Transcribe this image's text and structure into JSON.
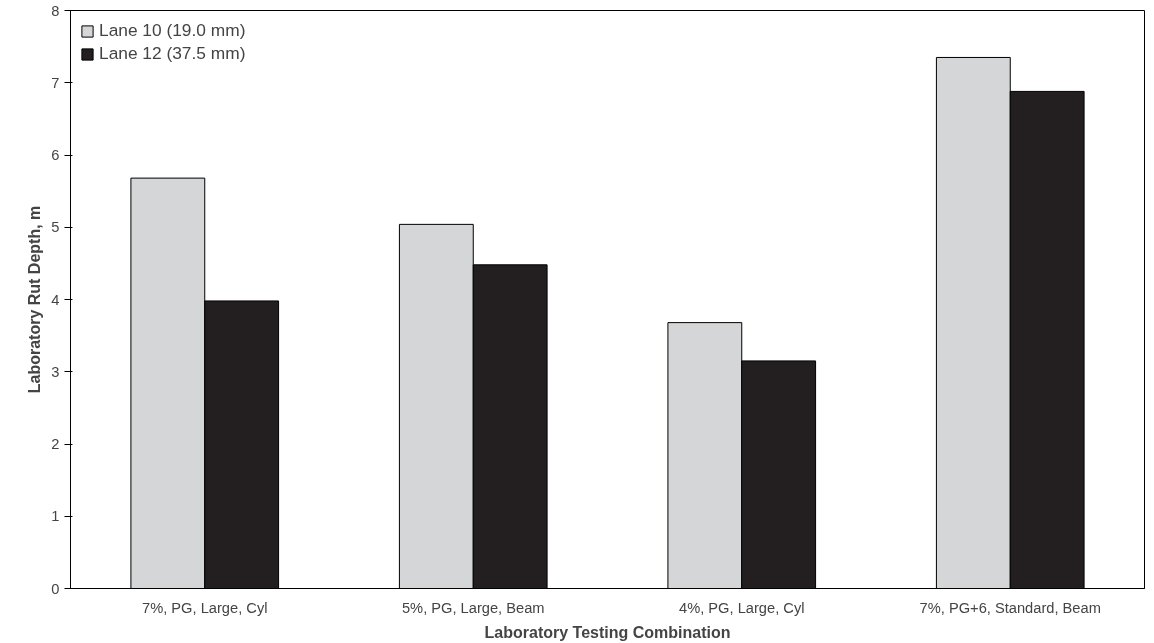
{
  "chart_data": {
    "type": "bar",
    "xlabel": "Laboratory Testing Combination",
    "ylabel": "Laboratory Rut Depth, m",
    "categories": [
      "7%, PG, Large, Cyl",
      "5%, PG, Large, Beam",
      "4%, PG, Large, Cyl",
      "7%, PG+6, Standard, Beam"
    ],
    "series": [
      {
        "name": "Lane 10 (19.0 mm)",
        "color": "#d4d6d8",
        "values": [
          5.68,
          5.04,
          3.68,
          7.35
        ]
      },
      {
        "name": "Lane 12 (37.5 mm)",
        "color": "#231f20",
        "values": [
          3.98,
          4.48,
          3.15,
          6.88
        ]
      }
    ],
    "ylim": [
      0,
      8
    ],
    "yticks": [
      0,
      1,
      2,
      3,
      4,
      5,
      6,
      7,
      8
    ],
    "grid": false,
    "legend": "top left"
  }
}
